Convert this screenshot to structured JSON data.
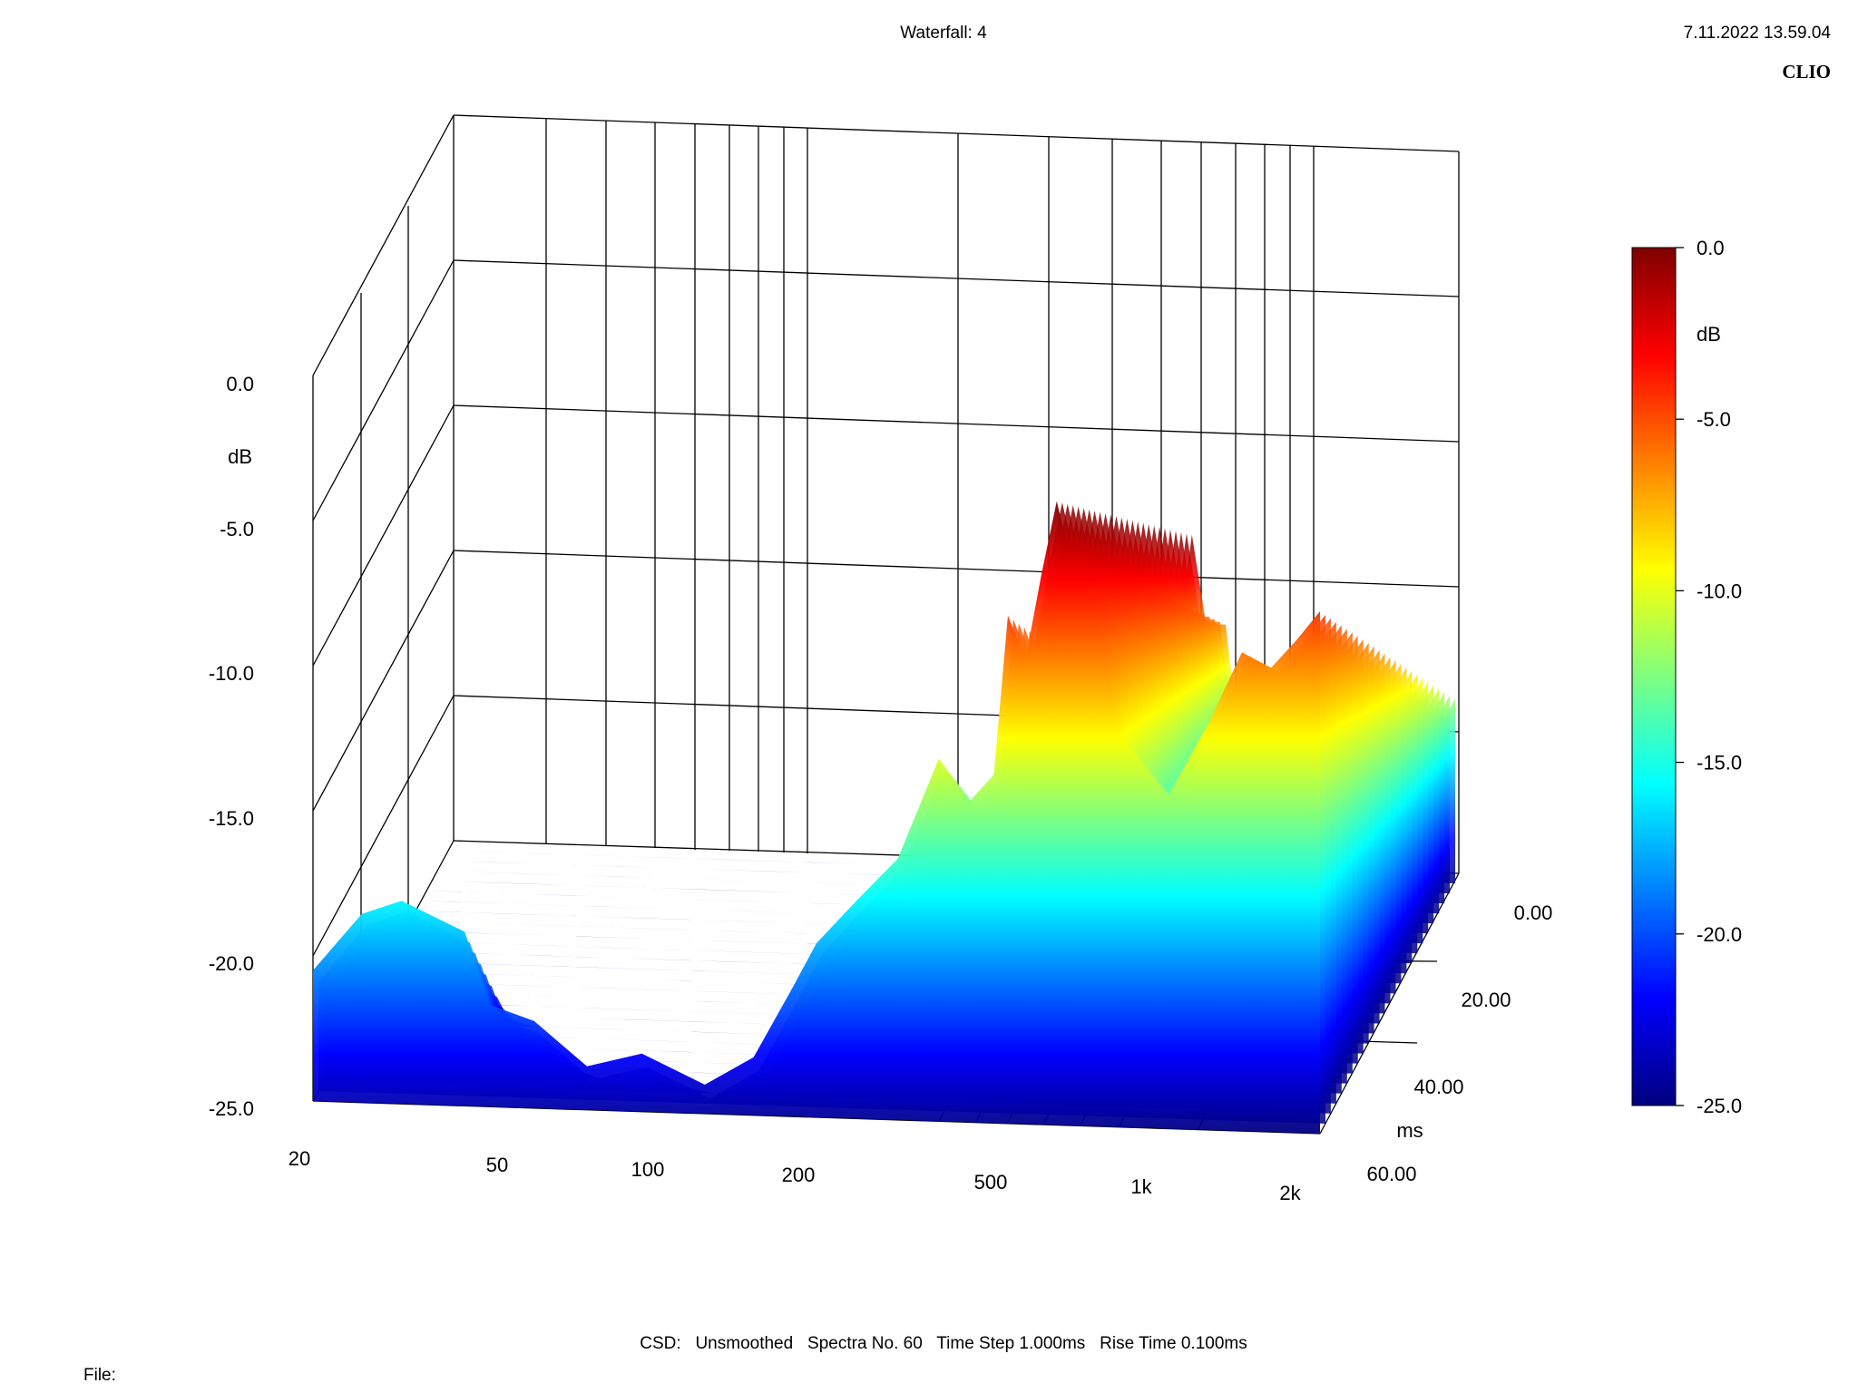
{
  "header": {
    "title": "Waterfall: 4",
    "datetime": "7.11.2022 13.59.04",
    "brand": "CLIO"
  },
  "footer": {
    "info": "CSD:   Unsmoothed   Spectra No. 60   Time Step 1.000ms   Rise Time 0.100ms",
    "file_label": "File:"
  },
  "chart_data": {
    "type": "waterfall",
    "title": "Waterfall: 4",
    "x_axis": {
      "scale": "log",
      "range_hz": [
        20,
        2000
      ],
      "tick_labels": [
        "20",
        "50",
        "100",
        "200",
        "500",
        "1k",
        "2k"
      ]
    },
    "y_axis": {
      "unit": "dB",
      "range": [
        -25.0,
        0.0
      ],
      "tick_labels": [
        "0.0",
        "-5.0",
        "-10.0",
        "-15.0",
        "-20.0",
        "-25.0"
      ]
    },
    "z_axis": {
      "unit": "ms",
      "range": [
        0,
        60
      ],
      "tick_labels": [
        "0.00",
        "20.00",
        "40.00",
        "60.00"
      ]
    },
    "colorbar": {
      "unit": "dB",
      "range": [
        -25.0,
        0.0
      ],
      "tick_labels": [
        "0.0",
        "-5.0",
        "-10.0",
        "-15.0",
        "-20.0",
        "-25.0"
      ],
      "colors": [
        "#00007f",
        "#0000ff",
        "#007fff",
        "#00ffff",
        "#7fff7f",
        "#ffff00",
        "#ff7f00",
        "#ff0000",
        "#7f0000"
      ]
    },
    "front_spectrum_db": [
      [
        20,
        -20.5
      ],
      [
        25,
        -18.5
      ],
      [
        30,
        -18.0
      ],
      [
        40,
        -19.0
      ],
      [
        45,
        -21.5
      ],
      [
        55,
        -22.0
      ],
      [
        70,
        -23.5
      ],
      [
        90,
        -23.0
      ],
      [
        120,
        -24.0
      ],
      [
        150,
        -23.0
      ],
      [
        180,
        -20.5
      ],
      [
        200,
        -19.0
      ],
      [
        240,
        -17.5
      ],
      [
        290,
        -16.0
      ],
      [
        350,
        -12.5
      ],
      [
        400,
        -14.0
      ],
      [
        450,
        -13.0
      ],
      [
        480,
        -7.5
      ],
      [
        520,
        -9.0
      ],
      [
        560,
        -6.0
      ],
      [
        600,
        -3.5
      ],
      [
        640,
        -5.5
      ],
      [
        700,
        -5.5
      ],
      [
        800,
        -11.5
      ],
      [
        1000,
        -13.5
      ],
      [
        1200,
        -11.0
      ],
      [
        1400,
        -8.5
      ],
      [
        1600,
        -9.0
      ],
      [
        1800,
        -8.0
      ],
      [
        2000,
        -7.0
      ]
    ]
  }
}
